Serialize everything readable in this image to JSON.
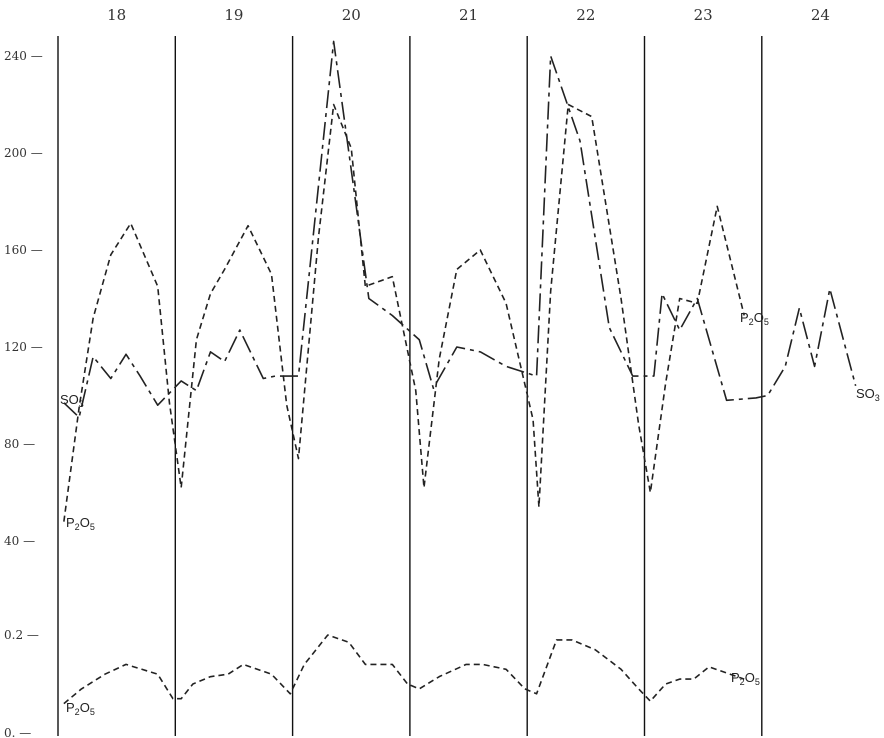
{
  "chart_data": {
    "type": "line",
    "title": "",
    "days": [
      "18",
      "19",
      "20",
      "21",
      "22",
      "23",
      "24"
    ],
    "upper_panel": {
      "yticks": [
        {
          "label": "240 —",
          "value": 240
        },
        {
          "label": "200 —",
          "value": 200
        },
        {
          "label": "160 —",
          "value": 160
        },
        {
          "label": "120 —",
          "value": 120
        },
        {
          "label": "80 —",
          "value": 80
        },
        {
          "label": "40 —",
          "value": 40
        }
      ],
      "ylim": [
        30,
        255
      ],
      "x_range": [
        18.0,
        25.0
      ],
      "series": [
        {
          "name": "SO3",
          "label_text": "SO",
          "label_sub": "3",
          "stroke": "#222222",
          "dash": "long-dash",
          "points": [
            [
              18.05,
              97
            ],
            [
              18.18,
              91
            ],
            [
              18.3,
              116
            ],
            [
              18.45,
              107
            ],
            [
              18.58,
              117
            ],
            [
              18.7,
              108
            ],
            [
              18.85,
              96
            ],
            [
              19.05,
              106
            ],
            [
              19.18,
              102
            ],
            [
              19.3,
              118
            ],
            [
              19.42,
              114
            ],
            [
              19.55,
              127
            ],
            [
              19.75,
              107
            ],
            [
              19.85,
              108
            ],
            [
              20.05,
              108
            ],
            [
              20.35,
              246
            ],
            [
              20.65,
              140
            ],
            [
              20.85,
              133
            ],
            [
              21.08,
              123
            ],
            [
              21.2,
              103
            ],
            [
              21.4,
              120
            ],
            [
              21.6,
              118
            ],
            [
              21.82,
              112
            ],
            [
              22.08,
              108
            ],
            [
              22.2,
              240
            ],
            [
              22.45,
              205
            ],
            [
              22.7,
              128
            ],
            [
              22.9,
              108
            ],
            [
              23.08,
              108
            ],
            [
              23.15,
              142
            ],
            [
              23.3,
              127
            ],
            [
              23.45,
              140
            ],
            [
              23.7,
              98
            ],
            [
              23.95,
              99
            ],
            [
              24.05,
              100
            ],
            [
              24.2,
              112
            ],
            [
              24.32,
              136
            ],
            [
              24.45,
              112
            ],
            [
              24.58,
              144
            ],
            [
              24.8,
              104
            ]
          ]
        },
        {
          "name": "P2O5",
          "label_text": "P",
          "label_sub": "2",
          "label_text2": "O",
          "label_sub2": "5",
          "stroke": "#222222",
          "dash": "short-dash",
          "points": [
            [
              18.05,
              48
            ],
            [
              18.18,
              95
            ],
            [
              18.3,
              132
            ],
            [
              18.45,
              158
            ],
            [
              18.62,
              171
            ],
            [
              18.85,
              145
            ],
            [
              18.95,
              97
            ],
            [
              19.05,
              62
            ],
            [
              19.18,
              123
            ],
            [
              19.3,
              142
            ],
            [
              19.42,
              152
            ],
            [
              19.62,
              170
            ],
            [
              19.82,
              150
            ],
            [
              19.95,
              96
            ],
            [
              20.05,
              74
            ],
            [
              20.22,
              165
            ],
            [
              20.35,
              220
            ],
            [
              20.5,
              202
            ],
            [
              20.62,
              145
            ],
            [
              20.85,
              149
            ],
            [
              21.05,
              102
            ],
            [
              21.12,
              62
            ],
            [
              21.25,
              115
            ],
            [
              21.4,
              152
            ],
            [
              21.6,
              160
            ],
            [
              21.82,
              138
            ],
            [
              22.05,
              90
            ],
            [
              22.1,
              54
            ],
            [
              22.2,
              143
            ],
            [
              22.35,
              220
            ],
            [
              22.55,
              215
            ],
            [
              22.8,
              140
            ],
            [
              22.95,
              88
            ],
            [
              23.05,
              60
            ],
            [
              23.18,
              105
            ],
            [
              23.3,
              140
            ],
            [
              23.45,
              138
            ],
            [
              23.62,
              178
            ],
            [
              23.85,
              133
            ]
          ]
        }
      ]
    },
    "lower_panel": {
      "yticks": [
        {
          "label": "0.2 —",
          "value": 0.2
        },
        {
          "label": "0. —",
          "value": 0.0
        }
      ],
      "ylim": [
        0.0,
        0.22
      ],
      "series": [
        {
          "name": "P2O5",
          "label_text": "P",
          "label_sub": "2",
          "label_text2": "O",
          "label_sub2": "5",
          "stroke": "#222222",
          "dash": "short-dash",
          "points": [
            [
              18.05,
              0.06
            ],
            [
              18.2,
              0.09
            ],
            [
              18.4,
              0.12
            ],
            [
              18.58,
              0.14
            ],
            [
              18.85,
              0.12
            ],
            [
              18.98,
              0.07
            ],
            [
              19.05,
              0.07
            ],
            [
              19.15,
              0.1
            ],
            [
              19.3,
              0.115
            ],
            [
              19.45,
              0.12
            ],
            [
              19.58,
              0.14
            ],
            [
              19.82,
              0.12
            ],
            [
              19.98,
              0.08
            ],
            [
              20.1,
              0.14
            ],
            [
              20.3,
              0.2
            ],
            [
              20.48,
              0.185
            ],
            [
              20.62,
              0.14
            ],
            [
              20.85,
              0.14
            ],
            [
              20.98,
              0.1
            ],
            [
              21.08,
              0.09
            ],
            [
              21.25,
              0.115
            ],
            [
              21.48,
              0.14
            ],
            [
              21.62,
              0.14
            ],
            [
              21.82,
              0.13
            ],
            [
              21.98,
              0.09
            ],
            [
              22.08,
              0.08
            ],
            [
              22.25,
              0.19
            ],
            [
              22.38,
              0.19
            ],
            [
              22.58,
              0.17
            ],
            [
              22.8,
              0.13
            ],
            [
              22.95,
              0.09
            ],
            [
              23.05,
              0.065
            ],
            [
              23.18,
              0.1
            ],
            [
              23.3,
              0.11
            ],
            [
              23.42,
              0.11
            ],
            [
              23.55,
              0.135
            ],
            [
              23.85,
              0.11
            ]
          ]
        }
      ]
    }
  }
}
